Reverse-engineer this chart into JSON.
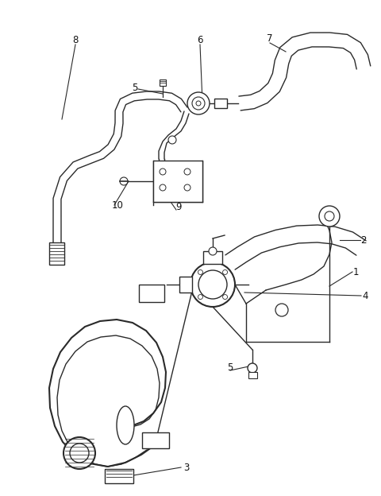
{
  "background_color": "#ffffff",
  "line_color": "#2a2a2a",
  "label_color": "#111111",
  "fig_width": 4.8,
  "fig_height": 6.24,
  "dpi": 100
}
